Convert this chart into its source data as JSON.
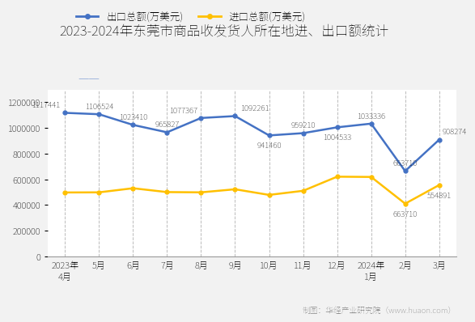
{
  "title": "2023-2024年东莞市商品收发货人所在地进、出口额统计",
  "x_labels": [
    "2023年\n4月",
    "5月",
    "6月",
    "7月",
    "8月",
    "9月",
    "10月",
    "11月",
    "12月",
    "2024年\n1月",
    "2月",
    "3月"
  ],
  "export_values": [
    1117441,
    1106524,
    1023410,
    965827,
    1077367,
    1092261,
    941460,
    959210,
    1004533,
    1033336,
    663710,
    908274
  ],
  "import_values": [
    497000,
    498000,
    530000,
    500000,
    498000,
    522000,
    478000,
    510000,
    620000,
    618000,
    410000,
    554891
  ],
  "export_label": "出口总额(万美元)",
  "import_label": "进口总额(万美元)",
  "export_color": "#4472C4",
  "import_color": "#FFC000",
  "ylim": [
    0,
    1300000
  ],
  "yticks": [
    0,
    200000,
    400000,
    600000,
    800000,
    1000000,
    1200000
  ],
  "background_color": "#f2f2f2",
  "plot_bg_color": "#ffffff",
  "footer": "制图：华经产业研究院（www.huaon.com）",
  "grid_color": "#bbbbbb",
  "annotation_export_show": [
    true,
    true,
    true,
    true,
    true,
    true,
    true,
    true,
    true,
    true,
    true,
    true
  ],
  "annotation_import_show": [
    false,
    false,
    false,
    false,
    false,
    false,
    false,
    false,
    false,
    false,
    true,
    true
  ],
  "export_annot_va": [
    "bottom",
    "top",
    "bottom",
    "bottom",
    "bottom",
    "top",
    "bottom",
    "top",
    "bottom",
    "top",
    "bottom",
    "bottom"
  ],
  "import_annot_va": [
    "bottom",
    "bottom",
    "bottom",
    "bottom",
    "bottom",
    "bottom",
    "bottom",
    "bottom",
    "bottom",
    "bottom",
    "bottom",
    "bottom"
  ]
}
